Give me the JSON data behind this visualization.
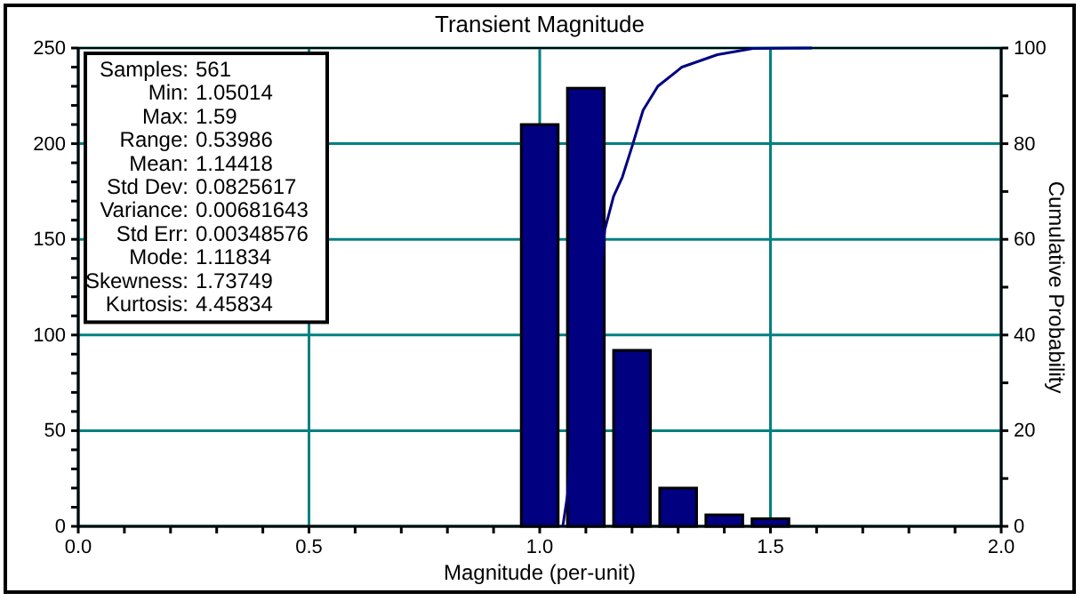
{
  "chart_data": {
    "type": "bar",
    "title": "Transient Magnitude",
    "xlabel": "Magnitude (per-unit)",
    "y2label": "Cumulative Probability",
    "annotations": [
      "Samples: 561",
      "Min: 1.05014",
      "Max: 1.59",
      "Range: 0.53986",
      "Mean: 1.14418",
      "Std Dev: 0.0825617",
      "Variance: 0.00681643",
      "Std Err: 0.00348576",
      "Mode: 1.11834",
      "Skewness: 1.73749",
      "Kurtosis: 4.45834"
    ],
    "series": [
      {
        "color": "#000080",
        "x": [
          1.0,
          1.1,
          1.2,
          1.3,
          1.4,
          1.5
        ],
        "values": [
          210,
          229,
          92,
          20,
          6,
          4
        ]
      },
      {
        "type": "line",
        "axis": "y2",
        "color": "#000080",
        "x": [
          1.05,
          1.061,
          1.066,
          1.134,
          1.141,
          1.16,
          1.179,
          1.202,
          1.224,
          1.256,
          1.308,
          1.385,
          1.462,
          1.59
        ],
        "values": [
          0,
          7,
          15,
          55,
          62,
          69,
          73,
          80,
          87,
          92,
          96,
          98.6,
          99.9,
          100
        ]
      }
    ],
    "xlim": [
      0,
      2
    ],
    "xticks": [
      {
        "value": 0,
        "label": "0.0"
      },
      {
        "value": 0.1,
        "label": null
      },
      {
        "value": 0.2,
        "label": null
      },
      {
        "value": 0.3,
        "label": null
      },
      {
        "value": 0.4,
        "label": null
      },
      {
        "value": 0.5,
        "label": "0.5"
      },
      {
        "value": 0.6,
        "label": null
      },
      {
        "value": 0.7,
        "label": null
      },
      {
        "value": 0.8,
        "label": null
      },
      {
        "value": 0.9,
        "label": null
      },
      {
        "value": 1,
        "label": "1.0"
      },
      {
        "value": 1.1,
        "label": null
      },
      {
        "value": 1.2,
        "label": null
      },
      {
        "value": 1.3,
        "label": null
      },
      {
        "value": 1.4,
        "label": null
      },
      {
        "value": 1.5,
        "label": "1.5"
      },
      {
        "value": 1.6,
        "label": null
      },
      {
        "value": 1.7,
        "label": null
      },
      {
        "value": 1.8,
        "label": null
      },
      {
        "value": 1.9,
        "label": null
      },
      {
        "value": 2,
        "label": "2.0"
      }
    ],
    "ylim": [
      0,
      250
    ],
    "yticks": [
      0,
      {
        "value": 10,
        "label": null
      },
      {
        "value": 20,
        "label": null
      },
      {
        "value": 30,
        "label": null
      },
      {
        "value": 40,
        "label": null
      },
      50,
      {
        "value": 60,
        "label": null
      },
      {
        "value": 70,
        "label": null
      },
      {
        "value": 80,
        "label": null
      },
      {
        "value": 90,
        "label": null
      },
      100,
      {
        "value": 110,
        "label": null
      },
      {
        "value": 120,
        "label": null
      },
      {
        "value": 130,
        "label": null
      },
      {
        "value": 140,
        "label": null
      },
      150,
      {
        "value": 160,
        "label": null
      },
      {
        "value": 170,
        "label": null
      },
      {
        "value": 180,
        "label": null
      },
      {
        "value": 190,
        "label": null
      },
      200,
      {
        "value": 210,
        "label": null
      },
      {
        "value": 220,
        "label": null
      },
      {
        "value": 230,
        "label": null
      },
      {
        "value": 240,
        "label": null
      },
      250
    ],
    "y2lim": [
      0,
      100
    ],
    "y2ticks": [
      0,
      {
        "value": 10,
        "label": null
      },
      20,
      {
        "value": 30,
        "label": null
      },
      40,
      {
        "value": 50,
        "label": null
      },
      60,
      {
        "value": 70,
        "label": null
      },
      80,
      {
        "value": 90,
        "label": null
      },
      100
    ],
    "grid": true
  }
}
